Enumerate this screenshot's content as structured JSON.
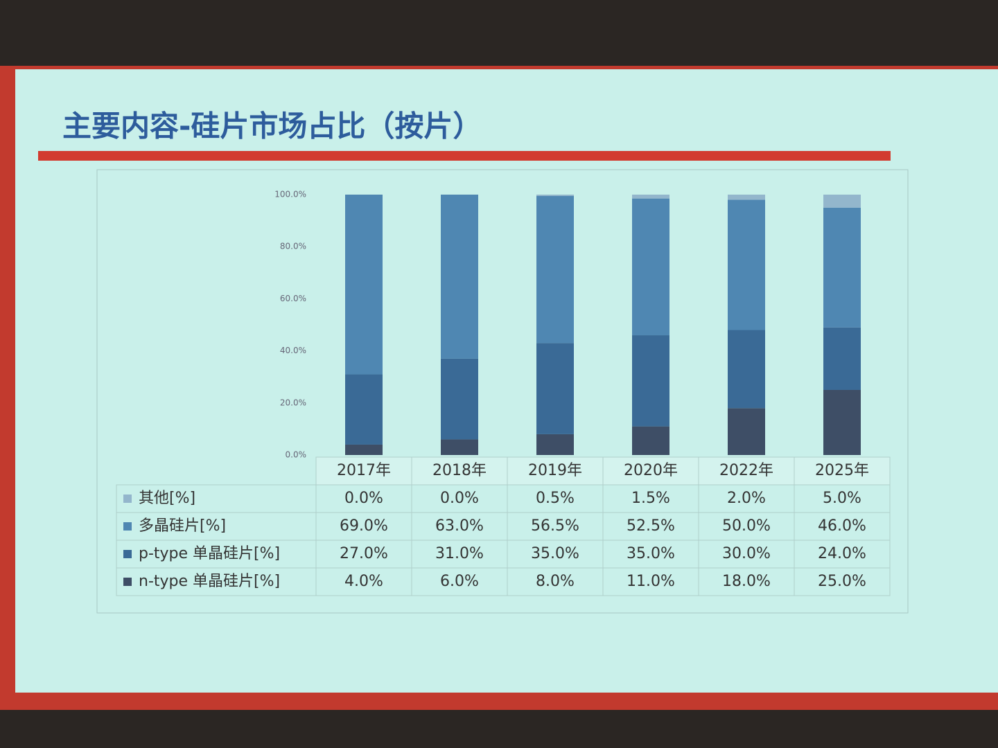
{
  "chart_data": {
    "type": "stacked_bar_table",
    "title": "主要内容-硅片市场占比（按片）",
    "categories": [
      "2017年",
      "2018年",
      "2019年",
      "2020年",
      "2022年",
      "2025年"
    ],
    "series": [
      {
        "name": "其他[%]",
        "color": "#93b6cc",
        "values": [
          0,
          0,
          0.5,
          1.5,
          2,
          5
        ],
        "value_labels": [
          "0.0%",
          "0.0%",
          "0.5%",
          "1.5%",
          "2.0%",
          "5.0%"
        ]
      },
      {
        "name": "多晶硅片[%]",
        "color": "#4f87b2",
        "values": [
          69,
          63,
          56.5,
          52.5,
          50,
          46
        ],
        "value_labels": [
          "69.0%",
          "63.0%",
          "56.5%",
          "52.5%",
          "50.0%",
          "46.0%"
        ]
      },
      {
        "name": "p-type 单晶硅片[%]",
        "color": "#3a6a96",
        "values": [
          27,
          31,
          35,
          35,
          30,
          24
        ],
        "value_labels": [
          "27.0%",
          "31.0%",
          "35.0%",
          "35.0%",
          "30.0%",
          "24.0%"
        ]
      },
      {
        "name": "n-type 单晶硅片[%]",
        "color": "#3e4e66",
        "values": [
          4,
          6,
          8,
          11,
          18,
          25
        ],
        "value_labels": [
          "4.0%",
          "6.0%",
          "8.0%",
          "11.0%",
          "18.0%",
          "25.0%"
        ]
      }
    ],
    "ylim": [
      0,
      100
    ],
    "yticks": [
      {
        "value": 0,
        "label": "0.0%"
      },
      {
        "value": 20,
        "label": "20.0%"
      },
      {
        "value": 40,
        "label": "40.0%"
      },
      {
        "value": 60,
        "label": "60.0%"
      },
      {
        "value": 80,
        "label": "80.0%"
      },
      {
        "value": 100,
        "label": "100.0%"
      }
    ],
    "grid": false
  }
}
